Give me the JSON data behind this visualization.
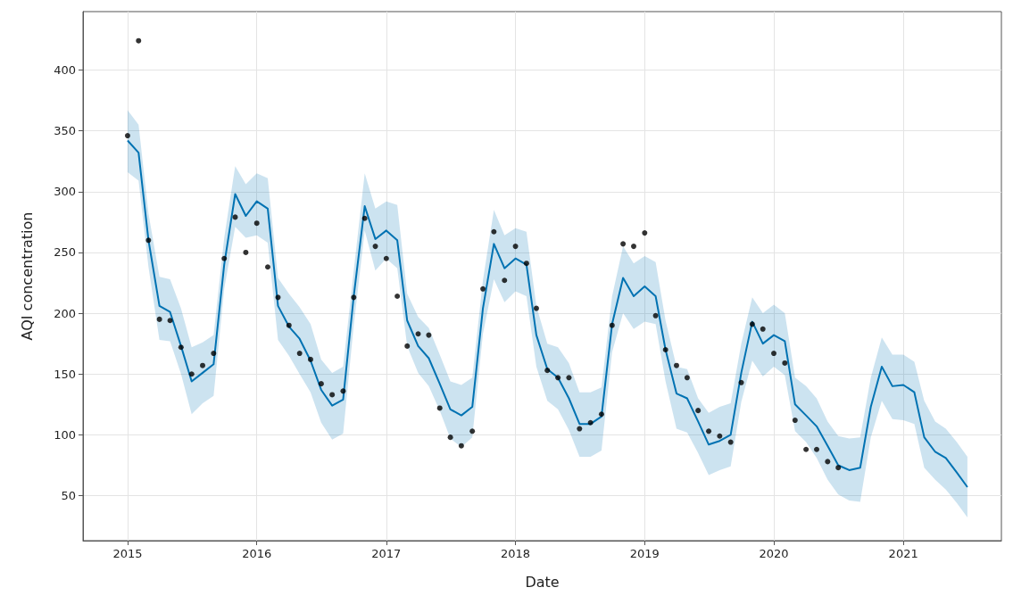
{
  "chart_data": {
    "type": "line",
    "xlabel": "Date",
    "ylabel": "AQI concentration",
    "xlim": [
      "2014-08-28",
      "2021-10-05"
    ],
    "ylim": [
      13,
      448
    ],
    "xticks": [
      "2015",
      "2016",
      "2017",
      "2018",
      "2019",
      "2020",
      "2021"
    ],
    "yticks": [
      50,
      100,
      150,
      200,
      250,
      300,
      350,
      400
    ],
    "grid": true,
    "line_style": "solid",
    "series": [
      {
        "type": "scatter",
        "marker": "circle",
        "color": "#000000",
        "x": [
          "2015-01",
          "2015-02",
          "2015-03",
          "2015-04",
          "2015-05",
          "2015-06",
          "2015-07",
          "2015-08",
          "2015-09",
          "2015-10",
          "2015-11",
          "2015-12",
          "2016-01",
          "2016-02",
          "2016-03",
          "2016-04",
          "2016-05",
          "2016-06",
          "2016-07",
          "2016-08",
          "2016-09",
          "2016-10",
          "2016-11",
          "2016-12",
          "2017-01",
          "2017-02",
          "2017-03",
          "2017-04",
          "2017-05",
          "2017-06",
          "2017-07",
          "2017-08",
          "2017-09",
          "2017-10",
          "2017-11",
          "2017-12",
          "2018-01",
          "2018-02",
          "2018-03",
          "2018-04",
          "2018-05",
          "2018-06",
          "2018-07",
          "2018-08",
          "2018-09",
          "2018-10",
          "2018-11",
          "2018-12",
          "2019-01",
          "2019-02",
          "2019-03",
          "2019-04",
          "2019-05",
          "2019-06",
          "2019-07",
          "2019-08",
          "2019-09",
          "2019-10",
          "2019-11",
          "2019-12",
          "2020-01",
          "2020-02",
          "2020-03",
          "2020-04",
          "2020-05",
          "2020-06",
          "2020-07"
        ],
        "values": [
          346,
          424,
          260,
          195,
          194,
          172,
          150,
          157,
          167,
          245,
          279,
          250,
          274,
          238,
          213,
          190,
          167,
          162,
          142,
          133,
          136,
          213,
          278,
          255,
          245,
          214,
          173,
          183,
          182,
          122,
          98,
          91,
          103,
          220,
          267,
          227,
          255,
          241,
          204,
          153,
          147,
          147,
          105,
          110,
          117,
          190,
          257,
          255,
          266,
          198,
          170,
          157,
          147,
          120,
          103,
          99,
          94,
          143,
          191,
          187,
          167,
          159,
          112,
          88,
          88,
          78,
          73
        ]
      },
      {
        "marker": "none",
        "color": "#0072b2",
        "x": [
          "2015-01",
          "2015-02",
          "2015-03",
          "2015-04",
          "2015-05",
          "2015-06",
          "2015-07",
          "2015-08",
          "2015-09",
          "2015-10",
          "2015-11",
          "2015-12",
          "2016-01",
          "2016-02",
          "2016-03",
          "2016-04",
          "2016-05",
          "2016-06",
          "2016-07",
          "2016-08",
          "2016-09",
          "2016-10",
          "2016-11",
          "2016-12",
          "2017-01",
          "2017-02",
          "2017-03",
          "2017-04",
          "2017-05",
          "2017-06",
          "2017-07",
          "2017-08",
          "2017-09",
          "2017-10",
          "2017-11",
          "2017-12",
          "2018-01",
          "2018-02",
          "2018-03",
          "2018-04",
          "2018-05",
          "2018-06",
          "2018-07",
          "2018-08",
          "2018-09",
          "2018-10",
          "2018-11",
          "2018-12",
          "2019-01",
          "2019-02",
          "2019-03",
          "2019-04",
          "2019-05",
          "2019-06",
          "2019-07",
          "2019-08",
          "2019-09",
          "2019-10",
          "2019-11",
          "2019-12",
          "2020-01",
          "2020-02",
          "2020-03",
          "2020-04",
          "2020-05",
          "2020-06",
          "2020-07",
          "2020-08",
          "2020-09",
          "2020-10",
          "2020-11",
          "2020-12",
          "2021-01",
          "2021-02",
          "2021-03",
          "2021-04",
          "2021-05",
          "2021-06",
          "2021-07"
        ],
        "values": [
          342,
          332,
          260,
          206,
          201,
          173,
          144,
          151,
          158,
          240,
          298,
          280,
          292,
          286,
          206,
          189,
          179,
          161,
          137,
          124,
          129,
          214,
          288,
          261,
          268,
          260,
          194,
          173,
          163,
          142,
          121,
          116,
          123,
          204,
          257,
          237,
          245,
          240,
          182,
          154,
          147,
          130,
          109,
          109,
          115,
          191,
          229,
          214,
          222,
          214,
          170,
          134,
          130,
          111,
          92,
          95,
          100,
          151,
          193,
          175,
          182,
          177,
          125,
          116,
          107,
          91,
          75,
          71,
          73,
          123,
          156,
          140,
          141,
          135,
          98,
          86,
          81,
          69,
          57
        ],
        "lower": [
          316,
          309,
          238,
          178,
          177,
          150,
          117,
          126,
          132,
          220,
          271,
          262,
          264,
          258,
          178,
          165,
          150,
          135,
          110,
          96,
          101,
          190,
          268,
          235,
          245,
          237,
          173,
          151,
          140,
          120,
          97,
          90,
          98,
          183,
          228,
          209,
          218,
          214,
          156,
          128,
          121,
          104,
          82,
          82,
          87,
          168,
          200,
          187,
          193,
          191,
          144,
          105,
          102,
          85,
          67,
          71,
          74,
          127,
          161,
          148,
          156,
          149,
          103,
          94,
          81,
          63,
          51,
          46,
          45,
          98,
          128,
          113,
          112,
          109,
          73,
          63,
          55,
          44,
          32
        ],
        "upper": [
          367,
          355,
          282,
          230,
          228,
          204,
          172,
          176,
          182,
          262,
          321,
          306,
          315,
          311,
          229,
          216,
          205,
          191,
          162,
          151,
          156,
          235,
          315,
          286,
          292,
          289,
          216,
          197,
          188,
          166,
          144,
          141,
          147,
          227,
          285,
          264,
          270,
          267,
          206,
          175,
          172,
          159,
          135,
          135,
          139,
          214,
          255,
          241,
          247,
          242,
          194,
          156,
          154,
          130,
          118,
          123,
          126,
          175,
          213,
          200,
          207,
          200,
          147,
          140,
          130,
          111,
          99,
          97,
          98,
          147,
          180,
          166,
          166,
          160,
          128,
          111,
          105,
          94,
          82
        ]
      }
    ]
  }
}
